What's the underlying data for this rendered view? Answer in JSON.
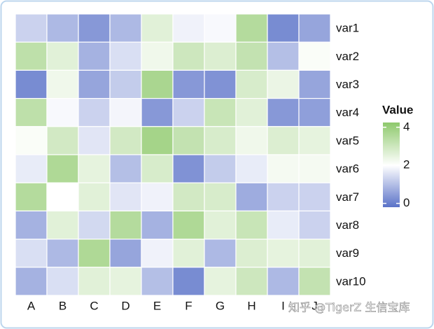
{
  "chart_data": {
    "type": "heatmap",
    "legend_title": "Value",
    "x_categories": [
      "A",
      "B",
      "C",
      "D",
      "E",
      "F",
      "G",
      "H",
      "I",
      "J"
    ],
    "y_categories": [
      "var1",
      "var2",
      "var3",
      "var4",
      "var5",
      "var6",
      "var7",
      "var8",
      "var9",
      "var10"
    ],
    "values": [
      [
        1.3,
        0.9,
        0.4,
        0.9,
        2.6,
        1.8,
        1.9,
        3.5,
        0.2,
        0.6
      ],
      [
        3.3,
        2.6,
        0.8,
        1.5,
        2.3,
        3.0,
        2.7,
        3.2,
        1.0,
        2.1
      ],
      [
        0.2,
        2.3,
        0.6,
        1.2,
        3.7,
        0.4,
        0.3,
        2.8,
        2.4,
        0.6
      ],
      [
        3.3,
        1.9,
        1.3,
        1.85,
        0.4,
        1.3,
        3.1,
        2.6,
        0.4,
        0.5
      ],
      [
        2.1,
        2.9,
        1.6,
        2.9,
        3.8,
        3.2,
        2.8,
        2.3,
        2.7,
        2.5
      ],
      [
        1.7,
        3.6,
        2.5,
        1.0,
        2.8,
        0.3,
        1.2,
        1.7,
        2.2,
        2.2
      ],
      [
        3.5,
        2.0,
        2.6,
        1.6,
        1.8,
        2.9,
        2.8,
        0.7,
        1.3,
        1.3
      ],
      [
        0.8,
        2.6,
        1.4,
        3.5,
        0.8,
        3.6,
        2.6,
        3.1,
        1.7,
        1.3
      ],
      [
        1.5,
        0.9,
        3.6,
        0.6,
        1.8,
        2.6,
        0.9,
        2.7,
        2.5,
        2.6
      ],
      [
        0.8,
        1.5,
        2.6,
        2.5,
        1.0,
        0.2,
        2.5,
        3.0,
        0.9,
        3.2
      ]
    ],
    "zlim": [
      -0.2,
      4.25
    ],
    "zticks": [
      0,
      2,
      4
    ],
    "colorscale": {
      "low": "#5a72c8",
      "mid": "#ffffff",
      "high": "#8ec96c",
      "midpoint": 2
    },
    "watermark": "知乎 @TigerZ 生信宝库"
  }
}
